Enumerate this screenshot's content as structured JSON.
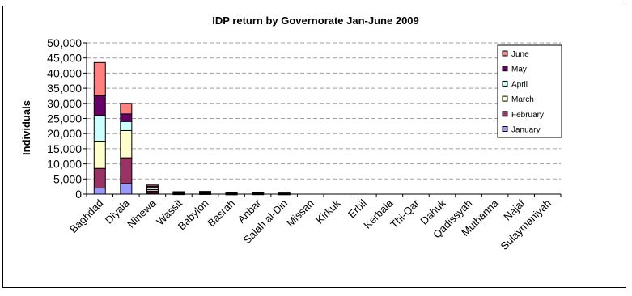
{
  "chart_data": {
    "type": "bar",
    "stacked": true,
    "title": "IDP return by Governorate Jan-June 2009",
    "xlabel": "",
    "ylabel": "Individuals",
    "ylim": [
      0,
      50000
    ],
    "yticks": [
      "0",
      "5,000",
      "10,000",
      "15,000",
      "20,000",
      "25,000",
      "30,000",
      "35,000",
      "40,000",
      "45,000",
      "50,000"
    ],
    "grid": true,
    "legend_position": "right",
    "categories": [
      "Baghdad",
      "Diyala",
      "Ninewa",
      "Wassit",
      "Babylon",
      "Basrah",
      "Anbar",
      "Salah al-Din",
      "Missan",
      "Kirkuk",
      "Erbil",
      "Kerbala",
      "Thi-Qar",
      "Dahuk",
      "Qadissyah",
      "Muthanna",
      "Najaf",
      "Sulaymaniyah"
    ],
    "series": [
      {
        "name": "January",
        "color": "#9999ff",
        "values": [
          2000,
          3500,
          300,
          100,
          150,
          50,
          80,
          60,
          0,
          0,
          0,
          0,
          0,
          0,
          0,
          0,
          0,
          0
        ]
      },
      {
        "name": "February",
        "color": "#993366",
        "values": [
          6500,
          8500,
          700,
          100,
          150,
          50,
          80,
          60,
          0,
          0,
          0,
          0,
          0,
          0,
          0,
          0,
          0,
          0
        ]
      },
      {
        "name": "March",
        "color": "#ffffcc",
        "values": [
          9000,
          9000,
          500,
          150,
          150,
          100,
          80,
          60,
          0,
          0,
          0,
          0,
          0,
          0,
          0,
          0,
          0,
          0
        ]
      },
      {
        "name": "April",
        "color": "#ccffff",
        "values": [
          8500,
          3000,
          600,
          150,
          150,
          100,
          80,
          60,
          0,
          0,
          0,
          0,
          0,
          0,
          0,
          0,
          0,
          0
        ]
      },
      {
        "name": "May",
        "color": "#660066",
        "values": [
          6500,
          2500,
          500,
          150,
          150,
          100,
          80,
          60,
          0,
          0,
          0,
          0,
          0,
          0,
          0,
          0,
          0,
          0
        ]
      },
      {
        "name": "June",
        "color": "#ff8080",
        "values": [
          11000,
          3500,
          400,
          150,
          150,
          100,
          80,
          60,
          0,
          0,
          0,
          0,
          0,
          0,
          0,
          0,
          0,
          0
        ]
      }
    ]
  }
}
